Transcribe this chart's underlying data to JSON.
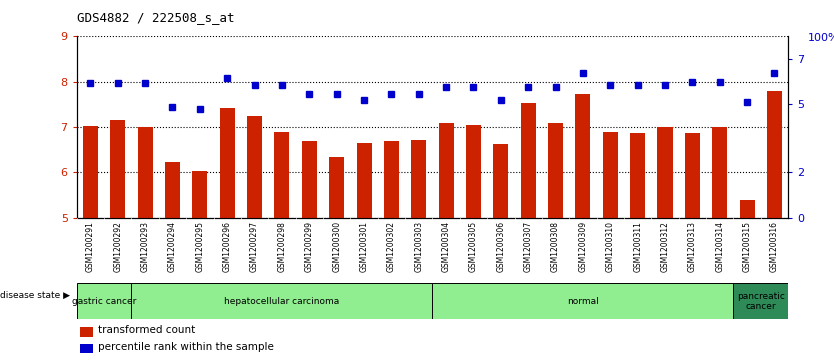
{
  "title": "GDS4882 / 222508_s_at",
  "categories": [
    "GSM1200291",
    "GSM1200292",
    "GSM1200293",
    "GSM1200294",
    "GSM1200295",
    "GSM1200296",
    "GSM1200297",
    "GSM1200298",
    "GSM1200299",
    "GSM1200300",
    "GSM1200301",
    "GSM1200302",
    "GSM1200303",
    "GSM1200304",
    "GSM1200305",
    "GSM1200306",
    "GSM1200307",
    "GSM1200308",
    "GSM1200309",
    "GSM1200310",
    "GSM1200311",
    "GSM1200312",
    "GSM1200313",
    "GSM1200314",
    "GSM1200315",
    "GSM1200316"
  ],
  "bar_values": [
    7.02,
    7.15,
    7.0,
    6.22,
    6.04,
    7.43,
    7.24,
    6.88,
    6.69,
    6.33,
    6.65,
    6.7,
    6.72,
    7.1,
    7.04,
    6.62,
    7.52,
    7.08,
    7.73,
    6.88,
    6.87,
    7.0,
    6.86,
    7.0,
    5.39,
    7.8
  ],
  "percentile_values": [
    74,
    74,
    74,
    61,
    60,
    77,
    73,
    73,
    68,
    68,
    65,
    68,
    68,
    72,
    72,
    65,
    72,
    72,
    80,
    73,
    73,
    73,
    75,
    75,
    64,
    80
  ],
  "ylim_left": [
    5,
    9
  ],
  "ylim_right": [
    0,
    8
  ],
  "yticks_left": [
    5,
    6,
    7,
    8,
    9
  ],
  "yticks_right": [
    0,
    2,
    5,
    7
  ],
  "ytick_right_labels": [
    "0",
    "2",
    "5",
    "7"
  ],
  "bar_color": "#CC2200",
  "dot_color": "#0000CC",
  "background_color": "#FFFFFF",
  "xlabel_color": "#CC2200",
  "ylabel_right_color": "#0000CC",
  "light_green": "#90EE90",
  "dark_green": "#2E8B57",
  "disease_groups": [
    {
      "label": "gastric cancer",
      "start": 0,
      "end": 2,
      "dark": false
    },
    {
      "label": "hepatocellular carcinoma",
      "start": 2,
      "end": 13,
      "dark": false
    },
    {
      "label": "normal",
      "start": 13,
      "end": 24,
      "dark": false
    },
    {
      "label": "pancreatic\ncancer",
      "start": 24,
      "end": 26,
      "dark": true
    }
  ],
  "legend_items": [
    {
      "label": "transformed count",
      "color": "#CC2200"
    },
    {
      "label": "percentile rank within the sample",
      "color": "#0000CC"
    }
  ]
}
